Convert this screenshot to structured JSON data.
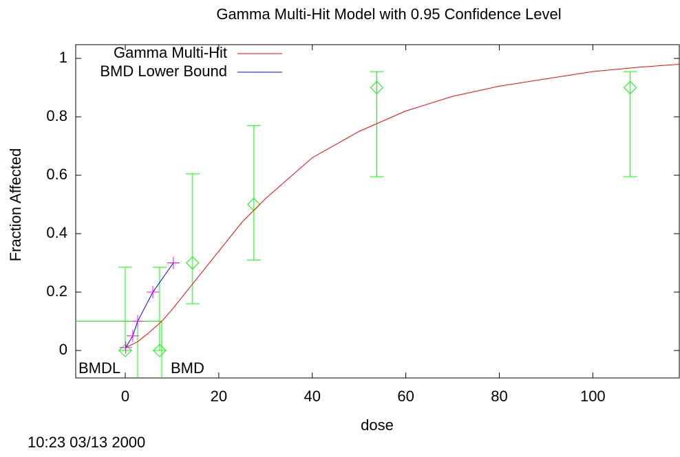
{
  "chart_data": {
    "type": "dose-response",
    "title": "Gamma Multi-Hit Model with 0.95 Confidence Level",
    "xlabel": "dose",
    "ylabel": "Fraction Affected",
    "xlim": [
      -10.6,
      118.5
    ],
    "ylim": [
      -0.094,
      1.047
    ],
    "xticks": [
      0,
      20,
      40,
      60,
      80,
      100
    ],
    "yticks": [
      0,
      0.2,
      0.4,
      0.6,
      0.8,
      1
    ],
    "series": [
      {
        "name": "Gamma Multi-Hit",
        "color": "#ff0000",
        "x": [
          0,
          2.65,
          5,
          7.8,
          10,
          15,
          20,
          25,
          30,
          40,
          50,
          60,
          70,
          80,
          90,
          100,
          110,
          118.5
        ],
        "values": [
          0.01,
          0.03,
          0.06,
          0.1,
          0.14,
          0.24,
          0.34,
          0.44,
          0.52,
          0.66,
          0.75,
          0.82,
          0.87,
          0.905,
          0.93,
          0.955,
          0.97,
          0.98
        ]
      },
      {
        "name": "BMD Lower Bound",
        "color": "#0000ff",
        "marker_color": "#ff00ff",
        "x": [
          0.1,
          1.6,
          2.65,
          5.9,
          10.3
        ],
        "values": [
          0.01,
          0.05,
          0.1,
          0.2,
          0.3
        ]
      }
    ],
    "observed": {
      "color": "#00ff00",
      "x": [
        0,
        7.35,
        14.4,
        27.5,
        53.8,
        108
      ],
      "values": [
        0,
        0,
        0.3,
        0.5,
        0.9,
        0.9
      ],
      "lower": [
        0,
        0,
        0.16,
        0.31,
        0.595,
        0.595
      ],
      "upper": [
        0.285,
        0.285,
        0.605,
        0.77,
        0.955,
        0.955
      ]
    },
    "bmr": 0.1,
    "bmdl": 2.65,
    "bmd": 7.8,
    "bmdl_label": "BMDL",
    "bmd_label": "BMD",
    "timestamp": "10:23 03/13 2000"
  }
}
